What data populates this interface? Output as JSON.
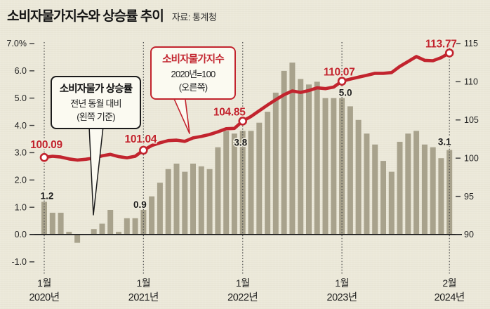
{
  "header": {
    "title": "소비자물가지수와 상승률 추이",
    "source": "자료: 통계청"
  },
  "annotations": {
    "bars_box": {
      "line1": "소비자물가 상승률",
      "line2": "전년 동월 대비",
      "line3": "(왼쪽 기준)"
    },
    "line_box": {
      "line1": "소비자물가지수",
      "line2": "2020년=100",
      "line3": "(오른쪽)"
    }
  },
  "colors": {
    "background": "#ece9da",
    "line": "#c2242e",
    "bar": "#a8a28c",
    "axis": "#2b2b2b",
    "text": "#1b1b1b",
    "dotted_guide": "#4a4a4a",
    "halo": "#efecdd"
  },
  "chart_data": {
    "type": "bar+line",
    "title": "소비자물가지수와 상승률 추이",
    "months_span": "2020-01 ~ 2024-02",
    "left_axis": {
      "unit": "%",
      "labels": [
        "7.0%",
        "6.0",
        "5.0",
        "4.0",
        "3.0",
        "2.0",
        "1.0",
        "0.0",
        "-1.0"
      ],
      "values": [
        7,
        6,
        5,
        4,
        3,
        2,
        1,
        0,
        -1
      ],
      "range": [
        -1,
        7
      ]
    },
    "right_axis": {
      "unit": "index (2020=100)",
      "labels": [
        "115",
        "110",
        "105",
        "100",
        "95",
        "90"
      ],
      "values": [
        115,
        110,
        105,
        100,
        95,
        90
      ],
      "range": [
        90,
        115
      ]
    },
    "bars": {
      "name": "소비자물가 상승률 (전년 동월 대비, %)",
      "values": [
        1.2,
        0.8,
        0.8,
        0.1,
        -0.3,
        0.0,
        0.2,
        0.4,
        0.9,
        0.1,
        0.6,
        0.6,
        0.9,
        1.4,
        1.9,
        2.4,
        2.6,
        2.3,
        2.6,
        2.5,
        2.4,
        3.2,
        3.8,
        3.7,
        3.8,
        3.8,
        4.1,
        4.5,
        5.2,
        6.0,
        6.3,
        5.7,
        5.5,
        5.6,
        5.0,
        5.0,
        5.0,
        4.7,
        4.2,
        3.7,
        3.3,
        2.7,
        2.3,
        3.4,
        3.7,
        3.8,
        3.3,
        3.2,
        2.8,
        3.1
      ]
    },
    "line": {
      "name": "소비자물가지수 (2020=100)",
      "values": [
        100.09,
        100.25,
        100.15,
        99.9,
        99.75,
        99.85,
        100.0,
        100.3,
        100.5,
        100.2,
        100.05,
        100.25,
        101.04,
        101.65,
        102.0,
        102.3,
        102.35,
        102.2,
        102.65,
        102.85,
        103.1,
        103.45,
        103.85,
        103.9,
        104.85,
        105.45,
        106.2,
        106.95,
        107.65,
        108.3,
        108.8,
        108.6,
        108.85,
        109.2,
        109.1,
        109.3,
        110.07,
        110.35,
        110.6,
        110.85,
        111.1,
        111.1,
        111.2,
        112.0,
        112.65,
        113.3,
        112.8,
        112.75,
        113.15,
        113.77
      ]
    },
    "marked_points": [
      {
        "index": 0,
        "month": "1월",
        "year": "2020년",
        "line_label": "100.09",
        "bar_label": "1.2",
        "line_dx": 3,
        "line_dy": -13,
        "bar_dx": 4,
        "bar_dy": -4
      },
      {
        "index": 12,
        "month": "1월",
        "year": "2021년",
        "line_label": "101.04",
        "bar_label": "0.9",
        "line_dx": -4,
        "line_dy": -11,
        "bar_dx": -5,
        "bar_dy": -3
      },
      {
        "index": 24,
        "month": "1월",
        "year": "2022년",
        "line_label": "104.85",
        "bar_label": "3.8",
        "line_dx": -19,
        "line_dy": -8,
        "bar_dx": -3,
        "bar_dy": 21
      },
      {
        "index": 36,
        "month": "1월",
        "year": "2023년",
        "line_label": "110.07",
        "bar_label": "5.0",
        "line_dx": -4,
        "line_dy": -8,
        "bar_dx": 5,
        "bar_dy": -3
      },
      {
        "index": 49,
        "month": "2월",
        "year": "2024년",
        "line_label": "113.77",
        "bar_label": "3.1",
        "line_dx": -12,
        "line_dy": -8,
        "bar_dx": -7,
        "bar_dy": -7
      }
    ],
    "legend_position": "annotation-callouts",
    "grid": "vertical-dotted-at-marked-months-only"
  }
}
